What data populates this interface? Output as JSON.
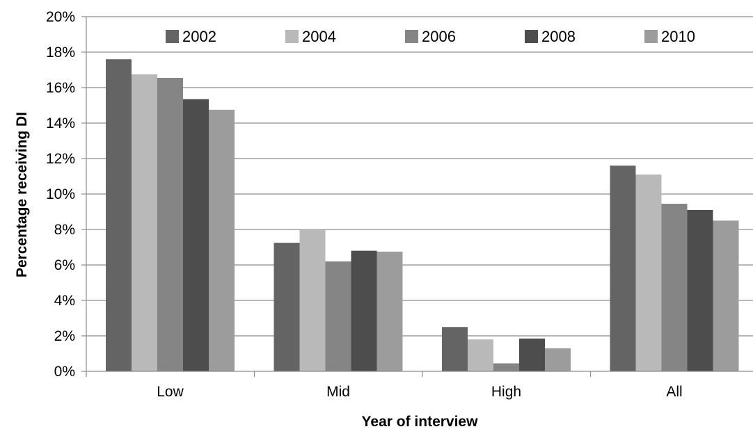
{
  "chart_data": {
    "type": "bar",
    "title": "",
    "xlabel": "Year of interview",
    "ylabel": "Percentage receiving DI",
    "categories": [
      "Low",
      "Mid",
      "High",
      "All"
    ],
    "series": [
      {
        "name": "2002",
        "color": "#646464",
        "values": [
          17.6,
          7.25,
          2.5,
          11.6
        ]
      },
      {
        "name": "2004",
        "color": "#b9b9b9",
        "values": [
          16.75,
          8.0,
          1.8,
          11.1
        ]
      },
      {
        "name": "2006",
        "color": "#858585",
        "values": [
          16.55,
          6.2,
          0.45,
          9.45
        ]
      },
      {
        "name": "2008",
        "color": "#4d4d4d",
        "values": [
          15.35,
          6.8,
          1.85,
          9.1
        ]
      },
      {
        "name": "2010",
        "color": "#9c9c9c",
        "values": [
          14.75,
          6.75,
          1.3,
          8.5
        ]
      }
    ],
    "ylim": [
      0,
      20
    ],
    "yticks": [
      "0%",
      "2%",
      "4%",
      "6%",
      "8%",
      "10%",
      "12%",
      "14%",
      "16%",
      "18%",
      "20%"
    ],
    "grid": true,
    "legend_position": "top"
  }
}
